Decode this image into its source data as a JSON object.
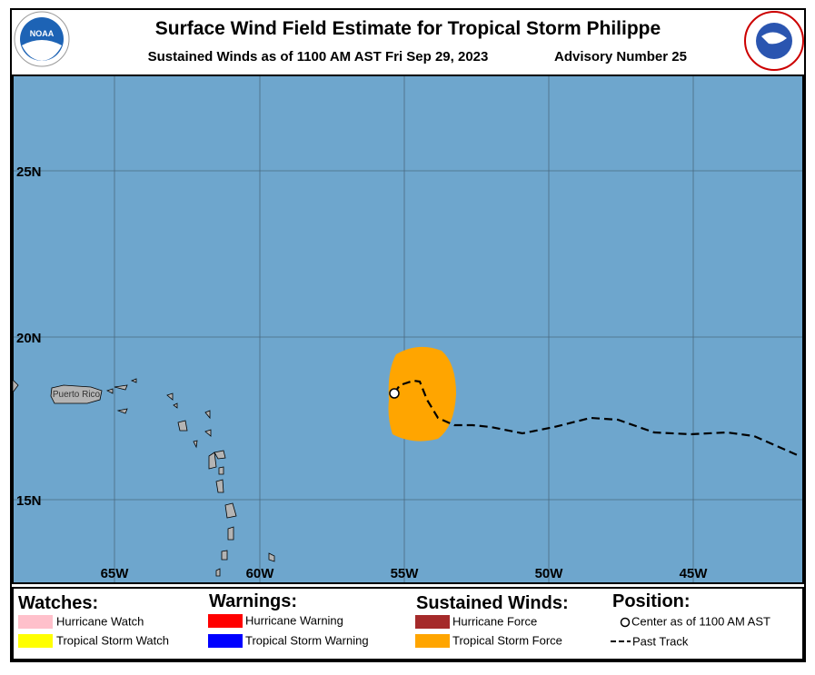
{
  "header": {
    "title": "Surface Wind Field Estimate for Tropical Storm Philippe",
    "subtitle": "Sustained Winds as of 1100 AM AST Fri Sep 29, 2023",
    "advisory": "Advisory Number 25",
    "left_logo": "NOAA"
  },
  "map": {
    "latitude_labels": [
      "25N",
      "20N",
      "15N"
    ],
    "longitude_labels": [
      "65W",
      "60W",
      "55W",
      "50W",
      "45W"
    ],
    "place_labels": [
      "Puerto Rico"
    ]
  },
  "legend": {
    "watches": {
      "heading": "Watches:",
      "items": [
        "Hurricane Watch",
        "Tropical Storm Watch"
      ]
    },
    "warnings": {
      "heading": "Warnings:",
      "items": [
        "Hurricane Warning",
        "Tropical Storm Warning"
      ]
    },
    "winds": {
      "heading": "Sustained Winds:",
      "items": [
        "Hurricane Force",
        "Tropical Storm Force"
      ]
    },
    "position": {
      "heading": "Position:",
      "items": [
        "Center as of 1100 AM AST",
        "Past Track"
      ]
    }
  }
}
